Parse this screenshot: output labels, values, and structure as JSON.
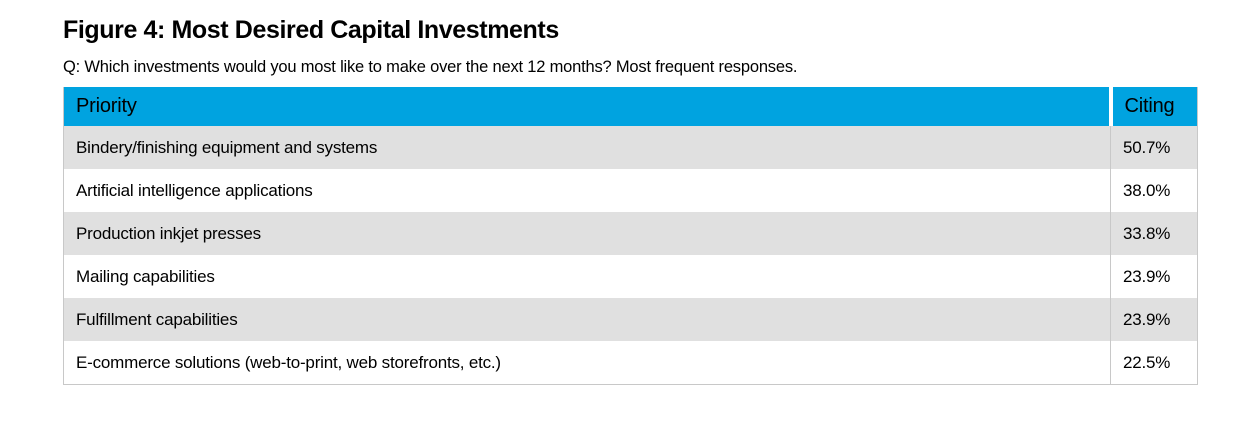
{
  "figure": {
    "title": "Figure 4: Most Desired Capital Investments",
    "question": "Q: Which investments would you most like to make over the next 12 months? Most frequent responses."
  },
  "table": {
    "columns": {
      "priority": "Priority",
      "citing": "Citing"
    },
    "rows": [
      {
        "priority": "Bindery/finishing equipment and systems",
        "citing": "50.7%"
      },
      {
        "priority": "Artificial intelligence applications",
        "citing": "38.0%"
      },
      {
        "priority": "Production inkjet presses",
        "citing": "33.8%"
      },
      {
        "priority": "Mailing capabilities",
        "citing": "23.9%"
      },
      {
        "priority": "Fulfillment capabilities",
        "citing": "23.9%"
      },
      {
        "priority": "E-commerce solutions (web-to-print, web storefronts, etc.)",
        "citing": "22.5%"
      }
    ]
  },
  "colors": {
    "header_bg": "#00A3E0",
    "row_alt_bg": "#E0E0E0",
    "border": "#C8C8C8",
    "text": "#000000"
  },
  "chart_data": {
    "type": "table",
    "title": "Figure 4: Most Desired Capital Investments",
    "subtitle": "Q: Which investments would you most like to make over the next 12 months? Most frequent responses.",
    "columns": [
      "Priority",
      "Citing"
    ],
    "categories": [
      "Bindery/finishing equipment and systems",
      "Artificial intelligence applications",
      "Production inkjet presses",
      "Mailing capabilities",
      "Fulfillment capabilities",
      "E-commerce solutions (web-to-print, web storefronts, etc.)"
    ],
    "values": [
      50.7,
      38.0,
      33.8,
      23.9,
      23.9,
      22.5
    ],
    "value_unit": "%",
    "layout": {
      "header_background": "#00A3E0",
      "zebra_striping": true,
      "first_data_row_shaded": true
    }
  }
}
